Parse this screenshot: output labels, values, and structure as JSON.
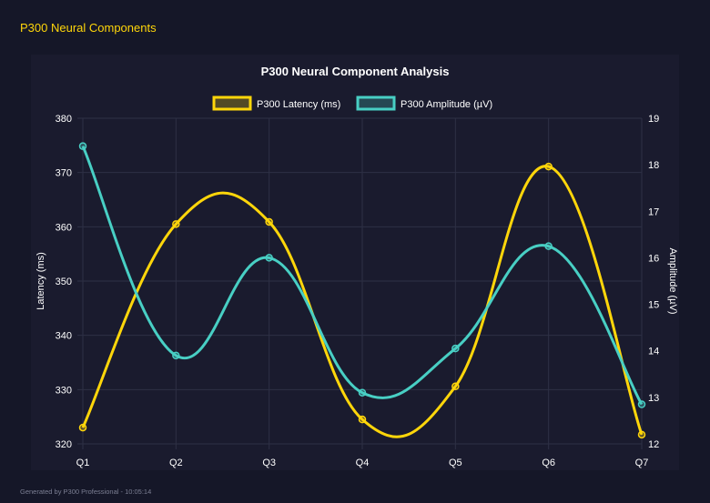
{
  "header": {
    "title": "P300 Neural Components"
  },
  "footer": {
    "text": "Generated by P300 Professional - 10:05:14"
  },
  "chart_data": {
    "type": "line",
    "title": "P300 Neural Component Analysis",
    "categories": [
      "Q1",
      "Q2",
      "Q3",
      "Q4",
      "Q5",
      "Q6",
      "Q7"
    ],
    "series": [
      {
        "name": "P300 Latency (ms)",
        "axis": "left",
        "color": "#ffd60a",
        "values": [
          323.0,
          360.5,
          360.9,
          324.5,
          330.6,
          371.1,
          321.7
        ]
      },
      {
        "name": "P300 Amplitude (µV)",
        "axis": "right",
        "color": "#48cfc4",
        "values": [
          18.4,
          13.9,
          16.0,
          13.1,
          14.05,
          16.25,
          12.85
        ]
      }
    ],
    "ylabel": "Latency (ms)",
    "y2label": "Amplitude (µV)",
    "ylim": [
      320,
      380
    ],
    "yticks": [
      320,
      330,
      340,
      350,
      360,
      370,
      380
    ],
    "y2lim": [
      12,
      19
    ],
    "y2ticks": [
      12,
      13,
      14,
      15,
      16,
      17,
      18,
      19
    ],
    "grid": true,
    "legend": "top"
  }
}
